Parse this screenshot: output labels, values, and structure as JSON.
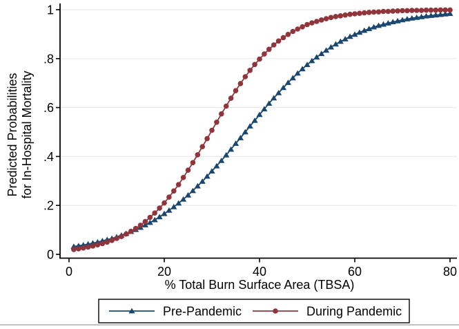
{
  "figure": {
    "background": "#ffffff",
    "border_bottom_color": "#c2c2c2"
  },
  "chart_data": {
    "type": "line",
    "title": "",
    "xlabel": "% Total Burn Surface Area (TBSA)",
    "ylabel_lines": [
      "Predicted Probabilities",
      "for In-Hospital Mortality"
    ],
    "xlim": [
      0,
      80
    ],
    "ylim": [
      0,
      1
    ],
    "x_ticks": [
      0,
      20,
      40,
      60,
      80
    ],
    "x_tick_labels": [
      "0",
      "20",
      "40",
      "60",
      "80"
    ],
    "y_ticks": [
      0,
      0.2,
      0.4,
      0.6,
      0.8,
      1
    ],
    "y_tick_labels": [
      "0",
      ".2",
      ".4",
      ".6",
      ".8",
      "1"
    ],
    "grid": "horizontal-only",
    "grid_color": "#ebebeb",
    "axis_color": "#000000",
    "legend_position": "bottom-center-boxed",
    "x": [
      1,
      2,
      3,
      4,
      5,
      6,
      7,
      8,
      9,
      10,
      11,
      12,
      13,
      14,
      15,
      16,
      17,
      18,
      19,
      20,
      21,
      22,
      23,
      24,
      25,
      26,
      27,
      28,
      29,
      30,
      31,
      32,
      33,
      34,
      35,
      36,
      37,
      38,
      39,
      40,
      41,
      42,
      43,
      44,
      45,
      46,
      47,
      48,
      49,
      50,
      51,
      52,
      53,
      54,
      55,
      56,
      57,
      58,
      59,
      60,
      61,
      62,
      63,
      64,
      65,
      66,
      67,
      68,
      69,
      70,
      71,
      72,
      73,
      74,
      75,
      76,
      77,
      78,
      79,
      80
    ],
    "series": [
      {
        "name": "Pre-Pandemic",
        "color": "#1a476f",
        "marker": "triangle",
        "values": [
          0.032,
          0.035,
          0.038,
          0.042,
          0.046,
          0.05,
          0.055,
          0.06,
          0.065,
          0.071,
          0.078,
          0.085,
          0.093,
          0.101,
          0.11,
          0.12,
          0.13,
          0.141,
          0.153,
          0.166,
          0.18,
          0.194,
          0.209,
          0.225,
          0.242,
          0.26,
          0.279,
          0.298,
          0.319,
          0.34,
          0.361,
          0.383,
          0.406,
          0.429,
          0.453,
          0.476,
          0.5,
          0.524,
          0.547,
          0.571,
          0.594,
          0.617,
          0.639,
          0.66,
          0.681,
          0.702,
          0.721,
          0.74,
          0.758,
          0.775,
          0.791,
          0.806,
          0.82,
          0.834,
          0.847,
          0.859,
          0.87,
          0.88,
          0.89,
          0.899,
          0.907,
          0.915,
          0.922,
          0.929,
          0.935,
          0.94,
          0.945,
          0.95,
          0.954,
          0.958,
          0.962,
          0.965,
          0.968,
          0.971,
          0.974,
          0.976,
          0.978,
          0.98,
          0.982,
          0.984
        ]
      },
      {
        "name": "During Pandemic",
        "color": "#90353b",
        "marker": "circle",
        "values": [
          0.02,
          0.023,
          0.026,
          0.03,
          0.034,
          0.039,
          0.044,
          0.05,
          0.057,
          0.065,
          0.073,
          0.083,
          0.094,
          0.106,
          0.119,
          0.134,
          0.151,
          0.169,
          0.189,
          0.21,
          0.234,
          0.259,
          0.285,
          0.314,
          0.344,
          0.375,
          0.407,
          0.44,
          0.473,
          0.507,
          0.54,
          0.574,
          0.606,
          0.638,
          0.669,
          0.698,
          0.726,
          0.752,
          0.776,
          0.798,
          0.819,
          0.838,
          0.856,
          0.872,
          0.886,
          0.899,
          0.911,
          0.921,
          0.93,
          0.939,
          0.946,
          0.952,
          0.958,
          0.963,
          0.968,
          0.972,
          0.975,
          0.978,
          0.981,
          0.983,
          0.985,
          0.987,
          0.989,
          0.99,
          0.991,
          0.993,
          0.993,
          0.994,
          0.995,
          0.996,
          0.996,
          0.997,
          0.997,
          0.997,
          0.998,
          0.998,
          0.998,
          0.999,
          0.999,
          0.999
        ]
      }
    ]
  }
}
